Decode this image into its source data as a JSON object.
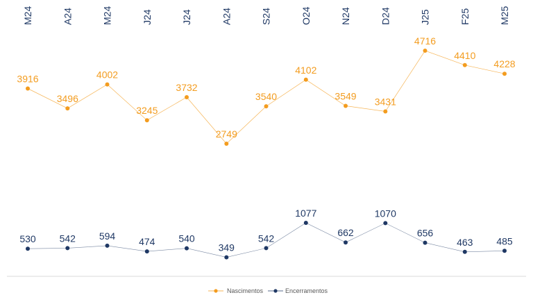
{
  "chart_data": {
    "type": "line",
    "categories": [
      "M24",
      "A24",
      "M24",
      "J24",
      "J24",
      "A24",
      "S24",
      "O24",
      "N24",
      "D24",
      "J25",
      "F25",
      "M25"
    ],
    "series": [
      {
        "name": "Nascimentos",
        "color": "#f39c1f",
        "values": [
          3916,
          3496,
          4002,
          3245,
          3732,
          2749,
          3540,
          4102,
          3549,
          3431,
          4716,
          4410,
          4228
        ]
      },
      {
        "name": "Encerramentos",
        "color": "#1f3864",
        "values": [
          530,
          542,
          594,
          474,
          540,
          349,
          542,
          1077,
          662,
          1070,
          656,
          463,
          485
        ]
      }
    ],
    "xlabel": "",
    "ylabel": "",
    "tick_color": "#1f3864",
    "legend_position": "bottom",
    "x_axis_position": "top",
    "data_labels": true,
    "grid": false
  }
}
